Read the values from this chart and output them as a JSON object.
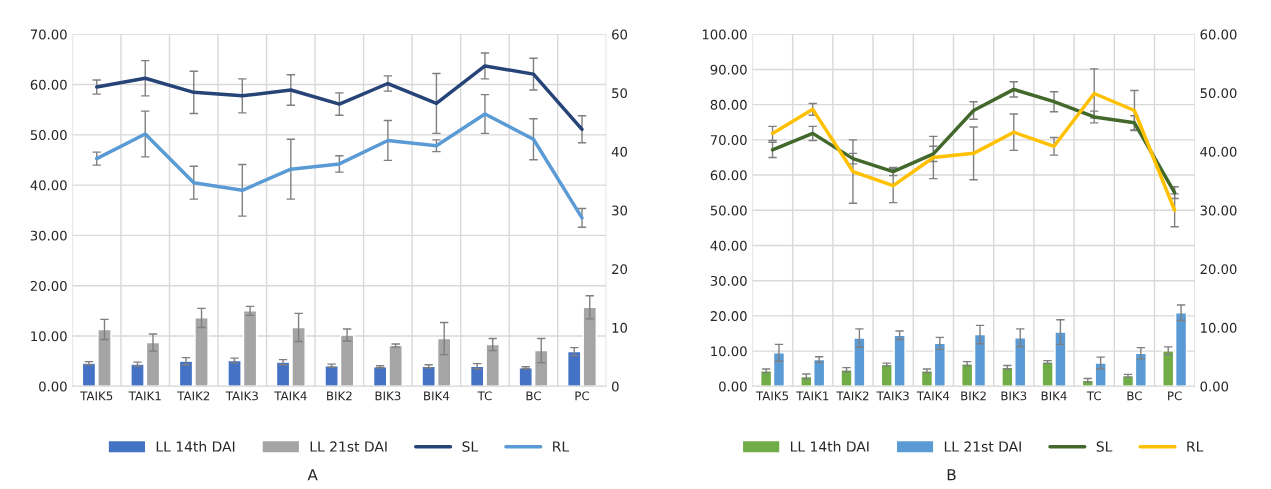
{
  "chart_data": [
    {
      "type": "bar",
      "title": "A",
      "categories": [
        "TAIK5",
        "TAIK1",
        "TAIK2",
        "TAIK3",
        "TAIK4",
        "BIK2",
        "BIK3",
        "BIK4",
        "TC",
        "BC",
        "PC"
      ],
      "series": [
        {
          "name": "LL 14th DAI",
          "color": "#4472c4",
          "values": [
            4.6,
            4.4,
            5.0,
            5.1,
            4.8,
            4.1,
            3.9,
            4.0,
            4.0,
            3.7,
            6.9
          ],
          "errors": [
            0.3,
            0.4,
            0.7,
            0.5,
            0.5,
            0.3,
            0.2,
            0.3,
            0.5,
            0.2,
            0.8
          ]
        },
        {
          "name": "LL 21st DAI",
          "color": "#a5a5a5",
          "values": [
            11.3,
            8.7,
            13.6,
            15.0,
            11.7,
            10.2,
            8.1,
            9.5,
            8.3,
            7.1,
            15.7
          ],
          "errors": [
            2.0,
            1.7,
            1.9,
            0.9,
            2.8,
            1.2,
            0.3,
            3.2,
            1.2,
            2.4,
            2.3
          ]
        },
        {
          "name": "SL",
          "type": "line",
          "axis": "y2",
          "color": "#264478",
          "values": [
            51.0,
            52.5,
            50.1,
            49.5,
            50.5,
            48.1,
            51.6,
            48.2,
            54.6,
            53.2,
            43.8
          ],
          "errors": [
            1.2,
            3.0,
            3.6,
            2.9,
            2.6,
            1.9,
            1.3,
            5.1,
            2.2,
            2.7,
            2.3
          ]
        },
        {
          "name": "RL",
          "type": "line",
          "axis": "y2",
          "color": "#5b9bd5",
          "values": [
            38.8,
            43.0,
            34.7,
            33.4,
            37.0,
            37.9,
            41.9,
            41.0,
            46.4,
            42.1,
            28.7
          ],
          "errors": [
            1.1,
            3.9,
            2.8,
            4.4,
            5.1,
            1.4,
            3.4,
            1.0,
            3.3,
            3.5,
            1.6
          ]
        }
      ],
      "ylim": [
        0,
        70
      ],
      "yticks": [
        {
          "value": 0,
          "label": "0.00"
        },
        {
          "value": 10,
          "label": "10.00"
        },
        {
          "value": 20,
          "label": "20.00"
        },
        {
          "value": 30,
          "label": "30.00"
        },
        {
          "value": 40,
          "label": "40.00"
        },
        {
          "value": 50,
          "label": "50.00"
        },
        {
          "value": 60,
          "label": "60.00"
        },
        {
          "value": 70,
          "label": "70.00"
        }
      ],
      "y2lim": [
        0,
        60
      ],
      "y2ticks": [
        0,
        10,
        20,
        30,
        40,
        50,
        60
      ],
      "grid": true,
      "legend": "bottom",
      "marker": "none",
      "line_style": "solid"
    },
    {
      "type": "bar",
      "title": "B",
      "categories": [
        "TAIK5",
        "TAIK1",
        "TAIK2",
        "TAIK3",
        "TAIK4",
        "BIK2",
        "BIK3",
        "BIK4",
        "TC",
        "BC",
        "PC"
      ],
      "series": [
        {
          "name": "LL 14th DAI",
          "color": "#70ad47",
          "values": [
            4.4,
            2.8,
            4.7,
            6.2,
            4.4,
            6.4,
            5.4,
            6.9,
            1.7,
            3.0,
            10.1
          ],
          "errors": [
            0.5,
            0.7,
            0.6,
            0.4,
            0.5,
            0.6,
            0.5,
            0.4,
            0.5,
            0.4,
            1.1
          ]
        },
        {
          "name": "LL 21st DAI",
          "color": "#5b9bd5",
          "values": [
            9.5,
            7.6,
            13.7,
            14.5,
            12.2,
            14.7,
            13.8,
            15.4,
            6.6,
            9.4,
            20.9
          ],
          "errors": [
            2.4,
            0.8,
            2.6,
            1.2,
            1.7,
            2.6,
            2.5,
            3.5,
            1.7,
            1.6,
            2.2
          ]
        },
        {
          "name": "SL",
          "type": "line",
          "axis": "y2",
          "color": "#43682b",
          "values": [
            40.3,
            43.1,
            38.8,
            36.6,
            39.6,
            47.0,
            50.6,
            48.5,
            45.9,
            44.9,
            33.0
          ],
          "errors": [
            1.3,
            1.2,
            0.9,
            0.7,
            1.3,
            1.5,
            1.3,
            1.7,
            1.0,
            1.2,
            1.0
          ]
        },
        {
          "name": "RL",
          "type": "line",
          "axis": "y2",
          "color": "#ffc000",
          "values": [
            43.1,
            47.2,
            36.6,
            34.2,
            39.0,
            39.7,
            43.3,
            40.9,
            49.9,
            47.0,
            30.0
          ],
          "errors": [
            1.2,
            1.0,
            5.4,
            2.9,
            3.6,
            4.5,
            3.1,
            1.5,
            4.2,
            3.4,
            2.8
          ]
        }
      ],
      "ylim": [
        0,
        100
      ],
      "yticks": [
        {
          "value": 0,
          "label": "0.00"
        },
        {
          "value": 10,
          "label": "10.00"
        },
        {
          "value": 20,
          "label": "20.00"
        },
        {
          "value": 30,
          "label": "30.00"
        },
        {
          "value": 40,
          "label": "40.00"
        },
        {
          "value": 50,
          "label": "50.00"
        },
        {
          "value": 60,
          "label": "60.00"
        },
        {
          "value": 70,
          "label": "70.00"
        },
        {
          "value": 80,
          "label": "80.00"
        },
        {
          "value": 90,
          "label": "90.00"
        },
        {
          "value": 100,
          "label": "100.00"
        }
      ],
      "y2lim": [
        0,
        60
      ],
      "y2ticks": [
        {
          "value": 0,
          "label": "0.00"
        },
        {
          "value": 10,
          "label": "10.00"
        },
        {
          "value": 20,
          "label": "20.00"
        },
        {
          "value": 30,
          "label": "30.00"
        },
        {
          "value": 40,
          "label": "40.00"
        },
        {
          "value": 50,
          "label": "50.00"
        },
        {
          "value": 60,
          "label": "60.00"
        }
      ],
      "grid": true,
      "legend": "bottom",
      "marker": "none",
      "line_style": "solid"
    }
  ]
}
